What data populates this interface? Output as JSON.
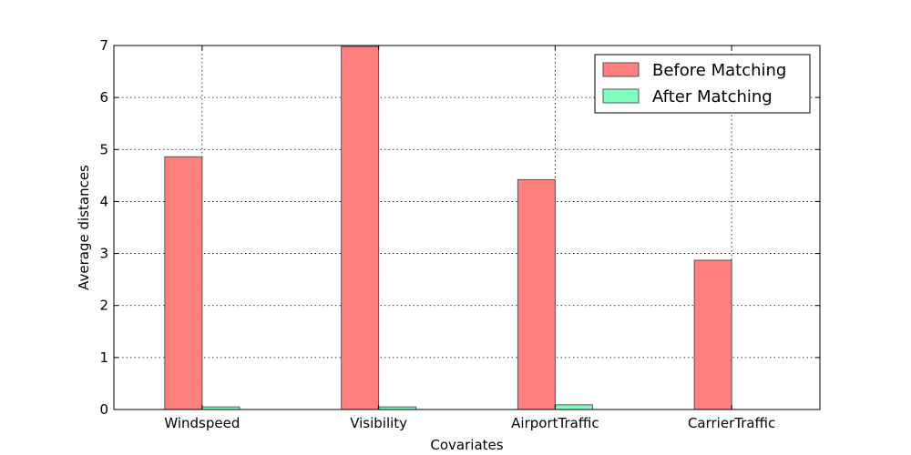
{
  "chart_data": {
    "type": "bar",
    "categories": [
      "Windspeed",
      "Visibility",
      "AirportTraffic",
      "CarrierTraffic"
    ],
    "series": [
      {
        "name": "Before Matching",
        "values": [
          4.86,
          6.98,
          4.42,
          2.87
        ],
        "color": "#ff7f7f"
      },
      {
        "name": "After Matching",
        "values": [
          0.05,
          0.05,
          0.09,
          0.0
        ],
        "color": "#7fffbf"
      }
    ],
    "xlabel": "Covariates",
    "ylabel": "Average distances",
    "ylim": [
      0,
      7
    ],
    "yticks": [
      0,
      1,
      2,
      3,
      4,
      5,
      6,
      7
    ],
    "grid": true,
    "legend_position": "top-right",
    "bar_edge_color": "#555555"
  }
}
